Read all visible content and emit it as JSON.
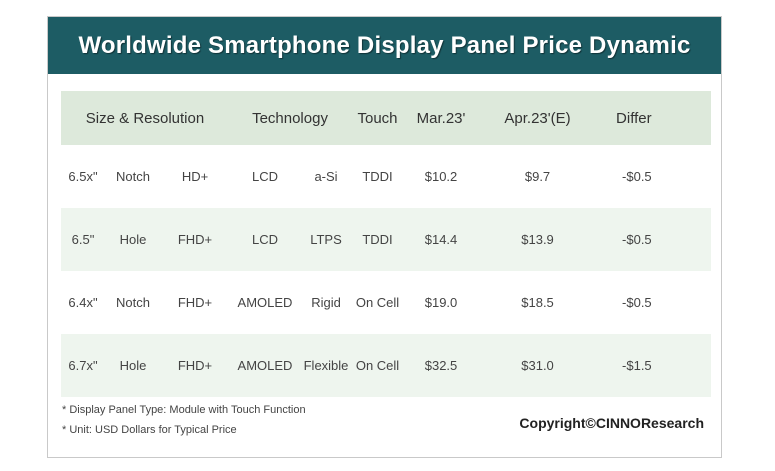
{
  "title": "Worldwide Smartphone Display Panel Price Dynamic",
  "header": {
    "size_resolution": "Size & Resolution",
    "technology": "Technology",
    "touch": "Touch",
    "mar": "Mar.23'",
    "apr": "Apr.23'(E)",
    "differ": "Differ"
  },
  "rows": [
    {
      "size": "6.5x\"",
      "notch": "Notch",
      "res": "HD+",
      "panel": "LCD",
      "tech": "a-Si",
      "touch": "TDDI",
      "mar": "$10.2",
      "apr": "$9.7",
      "differ": "-$0.5"
    },
    {
      "size": "6.5\"",
      "notch": "Hole",
      "res": "FHD+",
      "panel": "LCD",
      "tech": "LTPS",
      "touch": "TDDI",
      "mar": "$14.4",
      "apr": "$13.9",
      "differ": "-$0.5"
    },
    {
      "size": "6.4x\"",
      "notch": "Notch",
      "res": "FHD+",
      "panel": "AMOLED",
      "tech": "Rigid",
      "touch": "On Cell",
      "mar": "$19.0",
      "apr": "$18.5",
      "differ": "-$0.5"
    },
    {
      "size": "6.7x\"",
      "notch": "Hole",
      "res": "FHD+",
      "panel": "AMOLED",
      "tech": "Flexible",
      "touch": "On Cell",
      "mar": "$32.5",
      "apr": "$31.0",
      "differ": "-$1.5"
    }
  ],
  "footnotes": [
    "* Display Panel Type:  Module with Touch Function",
    "* Unit:  USD Dollars for Typical Price"
  ],
  "copyright": "Copyright©CINNOResearch",
  "colors": {
    "title_bg": "#1d5c64",
    "header_bg": "#dde9db",
    "row_shade": "#eef5ee"
  }
}
